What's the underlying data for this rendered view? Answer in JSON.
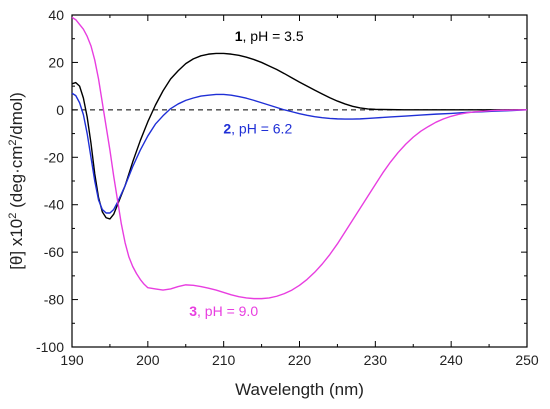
{
  "chart_data": {
    "type": "line",
    "xlabel": "Wavelength (nm)",
    "ylabel_parts": [
      "[θ] x10",
      "2",
      " (deg·cm",
      "2",
      "/dmol)"
    ],
    "xlim": [
      190,
      250
    ],
    "ylim": [
      -100,
      40
    ],
    "xticks": [
      190,
      200,
      210,
      220,
      230,
      240,
      250
    ],
    "yticks": [
      40,
      20,
      0,
      -20,
      -40,
      -60,
      -80,
      -100
    ],
    "zero_line": {
      "y": 0,
      "style": "dashed"
    },
    "series": [
      {
        "label_number": "1",
        "label_rest": ", pH = 3.5",
        "color": "#000000",
        "x": [
          190,
          190.5,
          191,
          191.5,
          192,
          192.5,
          193,
          193.5,
          194,
          194.5,
          195,
          195.5,
          196,
          197,
          198,
          199,
          200,
          201,
          202,
          203,
          204,
          205,
          206,
          207,
          208,
          209,
          210,
          211,
          212,
          213,
          214,
          215,
          216,
          217,
          218,
          219,
          220,
          221,
          222,
          223,
          224,
          225,
          226,
          227,
          228,
          229,
          230,
          232,
          234,
          236,
          238,
          240,
          245,
          250
        ],
        "y": [
          11,
          11.5,
          10,
          5,
          -3,
          -14,
          -27,
          -37,
          -43,
          -45.5,
          -46,
          -44,
          -40,
          -32,
          -22,
          -13,
          -5,
          2,
          8,
          13,
          16.5,
          19.5,
          21.5,
          22.8,
          23.5,
          23.8,
          23.8,
          23.5,
          23,
          22.2,
          21.2,
          20,
          18.5,
          17,
          15.3,
          13.5,
          11.7,
          10,
          8.3,
          6.7,
          5.1,
          3.7,
          2.5,
          1.5,
          0.8,
          0.4,
          0.2,
          0.1,
          0,
          0,
          0,
          0,
          0,
          0
        ]
      },
      {
        "label_number": "2",
        "label_rest": ", pH = 6.2",
        "color": "#1f2fd6",
        "x": [
          190,
          190.5,
          191,
          191.5,
          192,
          192.5,
          193,
          193.5,
          194,
          194.5,
          195,
          195.5,
          196,
          197,
          198,
          199,
          200,
          201,
          202,
          203,
          204,
          205,
          206,
          207,
          208,
          209,
          210,
          211,
          212,
          213,
          214,
          215,
          216,
          217,
          218,
          219,
          220,
          221,
          222,
          223,
          224,
          225,
          226,
          227,
          228,
          229,
          230,
          232,
          234,
          236,
          238,
          240,
          242,
          244,
          246,
          248,
          250
        ],
        "y": [
          7,
          6,
          3,
          -2,
          -10,
          -20,
          -30,
          -38,
          -42,
          -43.5,
          -43.5,
          -42,
          -39,
          -32,
          -24,
          -17,
          -11,
          -6,
          -2.5,
          0.5,
          2.5,
          4,
          5,
          5.8,
          6.2,
          6.5,
          6.5,
          6.2,
          5.6,
          4.9,
          4,
          3,
          2,
          1,
          0,
          -0.8,
          -1.6,
          -2.3,
          -2.9,
          -3.3,
          -3.6,
          -3.8,
          -3.9,
          -3.9,
          -3.8,
          -3.6,
          -3.4,
          -3,
          -2.6,
          -2.2,
          -1.8,
          -1.5,
          -1.1,
          -0.8,
          -0.5,
          -0.3,
          0
        ]
      },
      {
        "label_number": "3",
        "label_rest": ", pH = 9.0",
        "color": "#e83ee0",
        "x": [
          190,
          190.5,
          191,
          191.5,
          192,
          192.5,
          193,
          193.5,
          194,
          194.5,
          195,
          195.5,
          196,
          196.5,
          197,
          197.5,
          198,
          198.5,
          199,
          199.5,
          200,
          201,
          202,
          203,
          204,
          205,
          206,
          207,
          208,
          209,
          210,
          211,
          212,
          213,
          214,
          215,
          216,
          217,
          218,
          219,
          220,
          221,
          222,
          223,
          224,
          225,
          226,
          227,
          228,
          229,
          230,
          231,
          232,
          233,
          234,
          235,
          236,
          237,
          238,
          239,
          240,
          241,
          242,
          243,
          244,
          245,
          246,
          248,
          250
        ],
        "y": [
          39,
          38,
          36,
          34,
          31,
          27,
          21,
          13,
          3,
          -7,
          -17,
          -28,
          -38,
          -48,
          -56,
          -62,
          -66,
          -69,
          -71.5,
          -73.5,
          -75,
          -75.5,
          -76,
          -75.5,
          -74.5,
          -73.8,
          -74,
          -74.5,
          -75.2,
          -76,
          -77,
          -78,
          -78.8,
          -79.3,
          -79.6,
          -79.6,
          -79.3,
          -78.6,
          -77.5,
          -76,
          -74,
          -71.5,
          -68.5,
          -65,
          -61,
          -56.5,
          -51.5,
          -46.5,
          -41.5,
          -36.5,
          -31.5,
          -26.5,
          -22,
          -18,
          -14.5,
          -11.5,
          -9,
          -7,
          -5.2,
          -3.8,
          -2.7,
          -1.9,
          -1.3,
          -0.9,
          -0.6,
          -0.4,
          -0.2,
          -0.1,
          0
        ]
      }
    ],
    "annotations": [
      {
        "series": 0,
        "x": 216,
        "y": 29
      },
      {
        "series": 1,
        "x": 214.5,
        "y": -10
      },
      {
        "series": 2,
        "x": 210,
        "y": -87
      }
    ]
  }
}
